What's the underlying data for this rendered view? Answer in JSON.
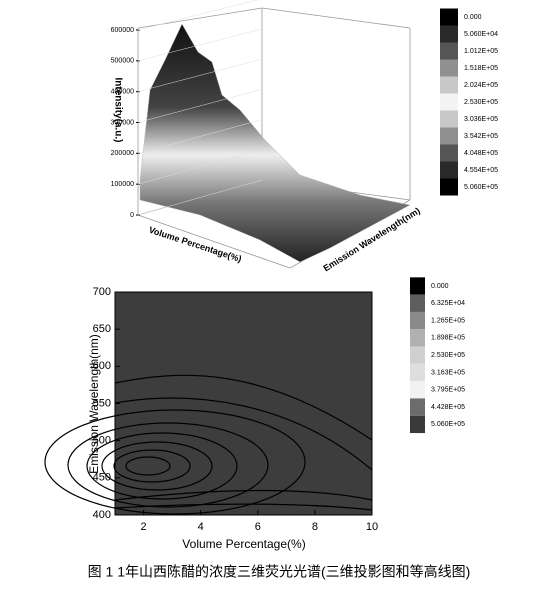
{
  "caption": "图 1 1年山西陈醋的浓度三维荧光光谱(三维投影图和等高线图)",
  "chart_data": [
    {
      "type": "surface3d",
      "z_label": "Intensity(a.u.)",
      "x_label": "Volume Percentage(%)",
      "y_label": "Emission Wavelength(nm)",
      "zlim": [
        0,
        600000
      ],
      "zticks": [
        0,
        100000,
        200000,
        300000,
        400000,
        500000,
        600000
      ],
      "colorbar": [
        {
          "value": 0,
          "label": "0.000"
        },
        {
          "value": 50600,
          "label": "5.060E+04"
        },
        {
          "value": 101200,
          "label": "1.012E+05"
        },
        {
          "value": 151800,
          "label": "1.518E+05"
        },
        {
          "value": 202400,
          "label": "2.024E+05"
        },
        {
          "value": 253000,
          "label": "2.530E+05"
        },
        {
          "value": 303600,
          "label": "3.036E+05"
        },
        {
          "value": 354200,
          "label": "3.542E+05"
        },
        {
          "value": 404800,
          "label": "4.048E+05"
        },
        {
          "value": 455400,
          "label": "4.554E+05"
        },
        {
          "value": 506000,
          "label": "5.060E+05"
        }
      ],
      "colors": [
        "#000000",
        "#2a2a2a",
        "#555555",
        "#909090",
        "#c8c8c8",
        "#f4f4f4",
        "#c8c8c8",
        "#909090",
        "#555555",
        "#2a2a2a",
        "#000000"
      ]
    },
    {
      "type": "contour",
      "x_label": "Volume Percentage(%)",
      "y_label": "Emission Wavelength(nm)",
      "xlim": [
        1,
        10
      ],
      "xticks": [
        2,
        4,
        6,
        8,
        10
      ],
      "ylim": [
        400,
        700
      ],
      "yticks": [
        400,
        450,
        500,
        550,
        600,
        650,
        700
      ],
      "colorbar": [
        {
          "value": 0,
          "label": "0.000"
        },
        {
          "value": 63250,
          "label": "6.325E+04"
        },
        {
          "value": 126500,
          "label": "1.265E+05"
        },
        {
          "value": 189800,
          "label": "1.898E+05"
        },
        {
          "value": 253000,
          "label": "2.530E+05"
        },
        {
          "value": 316300,
          "label": "3.163E+05"
        },
        {
          "value": 379500,
          "label": "3.795E+05"
        },
        {
          "value": 442800,
          "label": "4.428E+05"
        },
        {
          "value": 506000,
          "label": "5.060E+05"
        }
      ],
      "colors": [
        "#000000",
        "#5e5e5e",
        "#8a8a8a",
        "#b0b0b0",
        "#cfcfcf",
        "#dedede",
        "#f2f2f2",
        "#6c6c6c",
        "#3a3a3a"
      ]
    }
  ]
}
